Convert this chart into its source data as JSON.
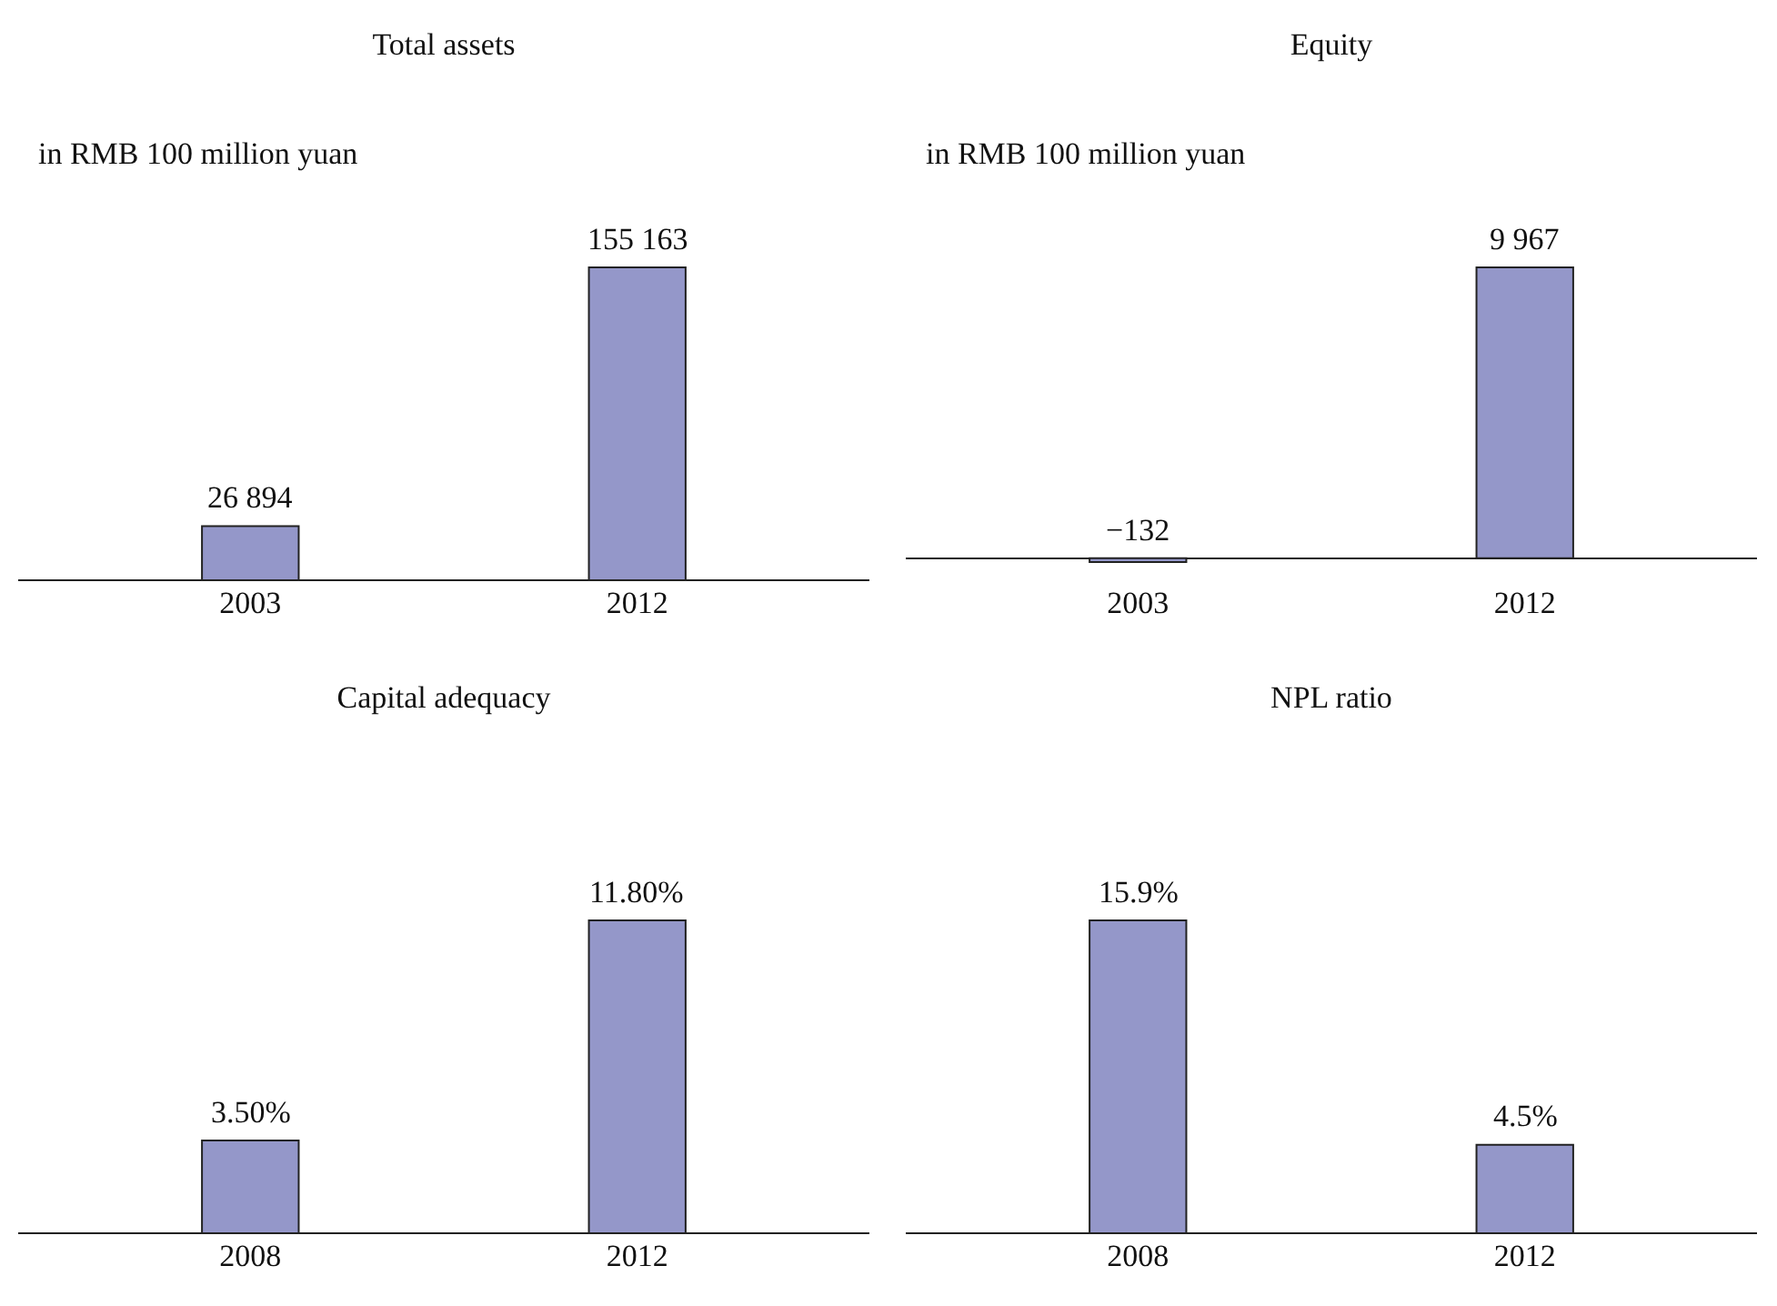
{
  "chart_data": [
    {
      "type": "bar",
      "title": "Total assets",
      "subtitle": "in RMB 100 million yuan",
      "categories": [
        "2003",
        "2012"
      ],
      "values": [
        26894,
        155163
      ],
      "value_labels": [
        "26 894",
        "155 163"
      ],
      "color": "#9497c9",
      "grid": false
    },
    {
      "type": "bar",
      "title": "Equity",
      "subtitle": "in RMB 100 million yuan",
      "categories": [
        "2003",
        "2012"
      ],
      "values": [
        -132,
        9967
      ],
      "value_labels": [
        "−132",
        "9 967"
      ],
      "color": "#9497c9",
      "grid": false
    },
    {
      "type": "bar",
      "title": "Capital adequacy",
      "categories": [
        "2008",
        "2012"
      ],
      "values": [
        3.5,
        11.8
      ],
      "value_labels": [
        "3.50%",
        "11.80%"
      ],
      "color": "#9497c9",
      "grid": false
    },
    {
      "type": "bar",
      "title": "NPL ratio",
      "categories": [
        "2008",
        "2012"
      ],
      "values": [
        15.9,
        4.5
      ],
      "value_labels": [
        "15.9%",
        "4.5%"
      ],
      "color": "#9497c9",
      "grid": false
    }
  ]
}
